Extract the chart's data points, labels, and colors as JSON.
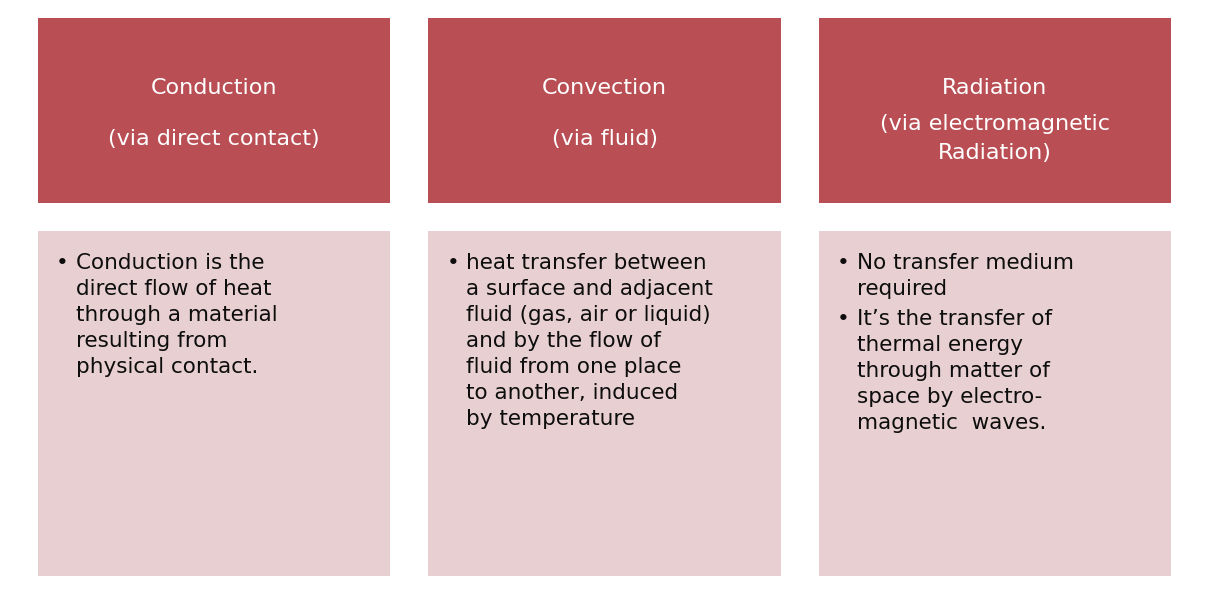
{
  "header_color": "#b94f54",
  "body_color": "#e8d0d2",
  "header_text_color": "#ffffff",
  "body_text_color": "#0d0d0d",
  "background_color": "#ffffff",
  "fig_width": 12.09,
  "fig_height": 6.14,
  "dpi": 100,
  "columns": [
    {
      "header_line1": "Conduction",
      "header_line2": "(via direct contact)",
      "body_bullets": [
        "Conduction is the\ndirect flow of heat\nthrough a material\nresulting from\nphysical contact."
      ]
    },
    {
      "header_line1": "Convection",
      "header_line2": "(via fluid)",
      "body_bullets": [
        "heat transfer between\na surface and adjacent\nfluid (gas, air or liquid)\nand by the flow of\nfluid from one place\nto another, induced\nby temperature"
      ]
    },
    {
      "header_line1": "Radiation",
      "header_line2": "(via electromagnetic\nRadiation)",
      "body_bullets": [
        "No transfer medium\nrequired",
        "It’s the transfer of\nthermal energy\nthrough matter of\nspace by electro-\nmagnetic  waves."
      ]
    }
  ]
}
